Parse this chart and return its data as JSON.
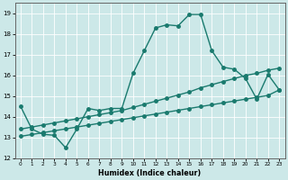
{
  "title": "",
  "xlabel": "Humidex (Indice chaleur)",
  "xlim": [
    -0.5,
    23.5
  ],
  "ylim": [
    12,
    19.5
  ],
  "xticks": [
    0,
    1,
    2,
    3,
    4,
    5,
    6,
    7,
    8,
    9,
    10,
    11,
    12,
    13,
    14,
    15,
    16,
    17,
    18,
    19,
    20,
    21,
    22,
    23
  ],
  "yticks": [
    12,
    13,
    14,
    15,
    16,
    17,
    18,
    19
  ],
  "bg_color": "#cce8e8",
  "grid_color": "#ffffff",
  "line_color": "#1a7a6e",
  "line1_x": [
    0,
    1,
    2,
    3,
    4,
    5,
    6,
    7,
    8,
    9,
    10,
    11,
    12,
    13,
    14,
    15,
    16,
    17,
    18,
    19,
    20,
    21,
    22,
    23
  ],
  "line1_y": [
    14.5,
    13.4,
    13.15,
    13.1,
    12.5,
    13.4,
    14.4,
    14.3,
    14.4,
    14.4,
    16.1,
    17.2,
    18.3,
    18.45,
    18.4,
    18.95,
    18.95,
    17.2,
    16.4,
    16.3,
    15.85,
    14.85,
    16.05,
    15.3
  ],
  "line2_x": [
    0,
    1,
    2,
    3,
    4,
    5,
    6,
    7,
    8,
    9,
    10,
    11,
    12,
    13,
    14,
    15,
    16,
    17,
    18,
    19,
    20,
    21,
    22,
    23
  ],
  "line2_y": [
    13.05,
    13.14,
    13.23,
    13.32,
    13.41,
    13.5,
    13.59,
    13.68,
    13.77,
    13.86,
    13.95,
    14.04,
    14.13,
    14.22,
    14.31,
    14.4,
    14.49,
    14.58,
    14.67,
    14.76,
    14.85,
    14.94,
    15.03,
    15.3
  ],
  "line3_x": [
    0,
    1,
    2,
    3,
    4,
    5,
    6,
    7,
    8,
    9,
    10,
    11,
    12,
    13,
    14,
    15,
    16,
    17,
    18,
    19,
    20,
    21,
    22,
    23
  ],
  "line3_y": [
    13.4,
    13.5,
    13.6,
    13.7,
    13.8,
    13.9,
    14.0,
    14.1,
    14.2,
    14.3,
    14.45,
    14.6,
    14.75,
    14.9,
    15.05,
    15.2,
    15.4,
    15.55,
    15.7,
    15.85,
    16.0,
    16.1,
    16.25,
    16.35
  ],
  "marker": "o",
  "marker_size": 2.5,
  "line_width": 1.0
}
